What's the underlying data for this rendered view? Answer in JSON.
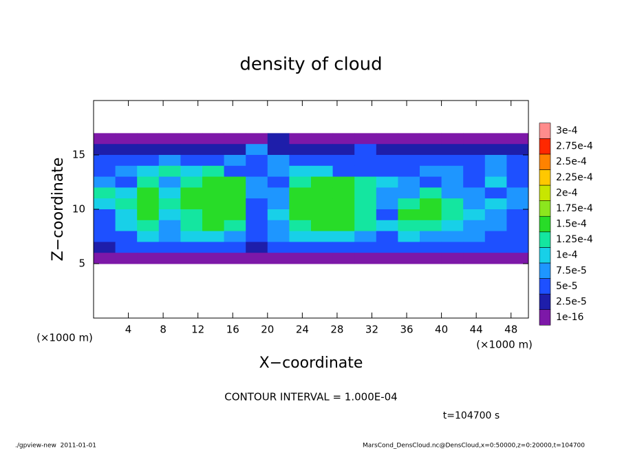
{
  "chart_data": {
    "type": "contour",
    "title": "density of cloud",
    "x_label": "X−coordinate",
    "y_label": "Z−coordinate",
    "x_unit_label": "(×1000 m)",
    "y_unit_label": "(×1000 m)",
    "annotation": "CONTOUR INTERVAL = 1.000E-04",
    "time_label": "t=104700 s",
    "footer_left": "./gpview-new  2011-01-01",
    "footer_right": "MarsCond_DensCloud.nc@DensCloud,x=0:50000,z=0:20000,t=104700",
    "xlim": [
      0,
      50
    ],
    "ylim": [
      0,
      20
    ],
    "xticks": [
      4,
      8,
      12,
      16,
      20,
      24,
      28,
      32,
      36,
      40,
      44,
      48
    ],
    "yticks": [
      5,
      10,
      15
    ],
    "levels": [
      {
        "value": 1e-16,
        "label": "1e-16"
      },
      {
        "value": 2.5e-05,
        "label": "2.5e-5"
      },
      {
        "value": 5e-05,
        "label": "5e-5"
      },
      {
        "value": 7.5e-05,
        "label": "7.5e-5"
      },
      {
        "value": 0.0001,
        "label": "1e-4"
      },
      {
        "value": 0.000125,
        "label": "1.25e-4"
      },
      {
        "value": 0.00015,
        "label": "1.5e-4"
      },
      {
        "value": 0.000175,
        "label": "1.75e-4"
      },
      {
        "value": 0.0002,
        "label": "2e-4"
      },
      {
        "value": 0.000225,
        "label": "2.25e-4"
      },
      {
        "value": 0.00025,
        "label": "2.5e-4"
      },
      {
        "value": 0.000275,
        "label": "2.75e-4"
      },
      {
        "value": 0.0003,
        "label": "3e-4"
      }
    ],
    "colors": [
      "#7d18a8",
      "#1e1eaa",
      "#1e50ff",
      "#1e96ff",
      "#18d0e8",
      "#14e6a0",
      "#28dc28",
      "#8ce61e",
      "#c8e600",
      "#ffc800",
      "#ff8200",
      "#ff2800",
      "#ff8c8c"
    ],
    "x": [
      1.25,
      3.75,
      6.25,
      8.75,
      11.25,
      13.75,
      16.25,
      18.75,
      21.25,
      23.75,
      26.25,
      28.75,
      31.25,
      33.75,
      36.25,
      38.75,
      41.25,
      43.75,
      46.25,
      48.75
    ],
    "z": [
      16.5,
      15.5,
      14.5,
      13.5,
      12.5,
      11.5,
      10.5,
      9.5,
      8.5,
      7.5,
      6.5,
      5.5
    ],
    "values": [
      [
        1e-05,
        1e-05,
        1e-05,
        1e-05,
        1e-05,
        1e-05,
        1e-05,
        1e-05,
        3e-05,
        1e-05,
        1e-05,
        1e-05,
        1e-05,
        1e-05,
        1e-05,
        1e-05,
        1e-05,
        1e-05,
        1e-05,
        1e-05
      ],
      [
        3e-05,
        3e-05,
        3e-05,
        3e-05,
        3e-05,
        3e-05,
        3e-05,
        8.5e-05,
        3e-05,
        3e-05,
        3e-05,
        3e-05,
        6e-05,
        3e-05,
        3e-05,
        3e-05,
        3e-05,
        3e-05,
        3e-05,
        3e-05
      ],
      [
        6e-05,
        6e-05,
        6e-05,
        8.5e-05,
        6e-05,
        6e-05,
        8.5e-05,
        6e-05,
        8.5e-05,
        6e-05,
        6e-05,
        6e-05,
        6e-05,
        6e-05,
        6e-05,
        6e-05,
        6e-05,
        6e-05,
        8.5e-05,
        6e-05
      ],
      [
        6e-05,
        8.5e-05,
        0.00011,
        0.000135,
        0.00011,
        0.000135,
        6e-05,
        6e-05,
        8.5e-05,
        0.00011,
        0.00011,
        6e-05,
        6e-05,
        6e-05,
        6e-05,
        8.5e-05,
        8.5e-05,
        6e-05,
        8.5e-05,
        6e-05
      ],
      [
        8.5e-05,
        6e-05,
        0.000135,
        8.5e-05,
        0.000135,
        0.00016,
        0.00016,
        8.5e-05,
        6e-05,
        0.000135,
        0.00016,
        0.00016,
        0.000135,
        0.00011,
        8.5e-05,
        6e-05,
        8.5e-05,
        6e-05,
        0.00011,
        6e-05
      ],
      [
        0.000135,
        0.00011,
        0.00016,
        0.00011,
        0.00016,
        0.00016,
        0.00016,
        8.5e-05,
        8.5e-05,
        0.00016,
        0.00016,
        0.00016,
        0.000135,
        8.5e-05,
        8.5e-05,
        0.000135,
        8.5e-05,
        8.5e-05,
        6e-05,
        8.5e-05
      ],
      [
        0.00011,
        0.000135,
        0.00016,
        0.000135,
        0.00016,
        0.00016,
        0.00016,
        6e-05,
        8.5e-05,
        0.00016,
        0.00016,
        0.00016,
        0.000135,
        8.5e-05,
        0.000135,
        0.00016,
        0.000135,
        8.5e-05,
        0.00011,
        8.5e-05
      ],
      [
        6e-05,
        0.00011,
        0.00016,
        0.00011,
        0.000135,
        0.00016,
        0.00016,
        6e-05,
        0.00011,
        0.00016,
        0.00016,
        0.00016,
        0.000135,
        6e-05,
        0.00016,
        0.00016,
        0.000135,
        0.00011,
        8.5e-05,
        6e-05
      ],
      [
        6e-05,
        0.00011,
        0.000135,
        8.5e-05,
        0.000135,
        0.00016,
        0.000135,
        6e-05,
        8.5e-05,
        0.000135,
        0.00016,
        0.00016,
        0.000135,
        0.00011,
        0.000135,
        0.000135,
        0.00011,
        8.5e-05,
        8.5e-05,
        6e-05
      ],
      [
        6e-05,
        6e-05,
        0.00011,
        8.5e-05,
        0.00011,
        0.00011,
        8.5e-05,
        6e-05,
        8.5e-05,
        0.00011,
        0.00011,
        0.00011,
        8.5e-05,
        6e-05,
        0.00011,
        8.5e-05,
        8.5e-05,
        8.5e-05,
        6e-05,
        6e-05
      ],
      [
        3e-05,
        6e-05,
        6e-05,
        6e-05,
        6e-05,
        6e-05,
        6e-05,
        3e-05,
        6e-05,
        6e-05,
        6e-05,
        6e-05,
        6e-05,
        6e-05,
        6e-05,
        6e-05,
        6e-05,
        6e-05,
        6e-05,
        6e-05
      ],
      [
        1e-05,
        1e-05,
        1e-05,
        1e-05,
        1e-05,
        1e-05,
        1e-05,
        1e-05,
        1e-05,
        1e-05,
        1e-05,
        1e-05,
        1e-05,
        1e-05,
        1e-05,
        1e-05,
        1e-05,
        1e-05,
        1e-05,
        1e-05
      ]
    ]
  }
}
